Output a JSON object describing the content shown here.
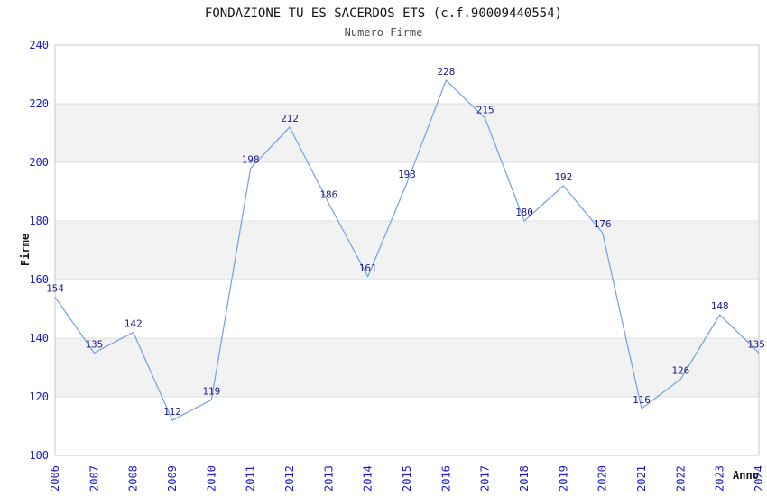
{
  "chart_data": {
    "type": "line",
    "title": "FONDAZIONE TU ES SACERDOS ETS (c.f.90009440554)",
    "subtitle": "Numero Firme",
    "xlabel": "Anno",
    "ylabel": "Firme",
    "categories": [
      "2006",
      "2007",
      "2008",
      "2009",
      "2010",
      "2011",
      "2012",
      "2013",
      "2014",
      "2015",
      "2016",
      "2017",
      "2018",
      "2019",
      "2020",
      "2021",
      "2022",
      "2023",
      "2024"
    ],
    "values": [
      154,
      135,
      142,
      112,
      119,
      198,
      212,
      186,
      161,
      193,
      228,
      215,
      180,
      192,
      176,
      116,
      126,
      148,
      135
    ],
    "ylim": [
      100,
      240
    ],
    "ytick_step": 20,
    "ytick_labels": [
      "100",
      "120",
      "140",
      "160",
      "180",
      "200",
      "220",
      "240"
    ],
    "grid": "horizontal gridlines with alternating gray bands",
    "legend_position": "none",
    "point_labels_shown": true,
    "colors": {
      "line": "#7aa5e5",
      "point_label": "#1a1a8c",
      "tick_label": "#1b1bc8",
      "band": "#f2f2f2",
      "gridline": "#e0e0e0",
      "border": "#c8c8c8",
      "title": "#151515",
      "subtitle": "#505050"
    }
  }
}
